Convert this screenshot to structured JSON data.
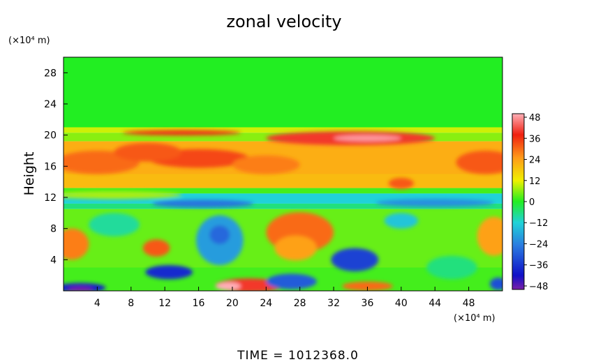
{
  "chart_data": {
    "type": "heatmap",
    "title": "zonal velocity",
    "ylabel": "Height",
    "y_unit": "(×10⁴ m)",
    "x_unit": "(×10⁴ m)",
    "footer": "TIME = 1012368.0",
    "xlim": [
      0,
      52
    ],
    "ylim": [
      0,
      30
    ],
    "x_ticks": [
      "4",
      "8",
      "12",
      "16",
      "20",
      "24",
      "28",
      "32",
      "36",
      "40",
      "44",
      "48"
    ],
    "y_ticks": [
      "4",
      "8",
      "12",
      "16",
      "20",
      "24",
      "28"
    ],
    "colorbar": {
      "range": [
        -50,
        50
      ],
      "ticks": [
        "48",
        "36",
        "24",
        "12",
        "0",
        "−12",
        "−24",
        "−36",
        "−48"
      ],
      "colors": {
        "neg_extreme": "#7a1fa8",
        "deep_blue": "#1010c8",
        "blue": "#2a7be0",
        "cyan": "#20d2d8",
        "green": "#22ee22",
        "yellow": "#f0f000",
        "orange": "#ff9a1a",
        "red": "#f02010",
        "pink": "#ffb0b8"
      }
    },
    "bands": [
      {
        "y_from": 21,
        "y_to": 30,
        "value": 0
      },
      {
        "y_from": 20.3,
        "y_to": 21,
        "value": 10
      },
      {
        "y_from": 19.2,
        "y_to": 20.3,
        "value": 6
      },
      {
        "y_from": 15,
        "y_to": 19.2,
        "value": 22
      },
      {
        "y_from": 13.2,
        "y_to": 15,
        "value": 20
      },
      {
        "y_from": 12.5,
        "y_to": 13.2,
        "value": 2
      },
      {
        "y_from": 11.2,
        "y_to": 12.5,
        "value": -12
      },
      {
        "y_from": 10.5,
        "y_to": 11.2,
        "value": -6
      },
      {
        "y_from": 3,
        "y_to": 10.5,
        "value": 4
      },
      {
        "y_from": 0,
        "y_to": 3,
        "value": 2
      }
    ],
    "features": [
      {
        "x": 16,
        "y": 17,
        "rx": 6,
        "ry": 1.2,
        "value": 34
      },
      {
        "x": 4,
        "y": 16.5,
        "rx": 5,
        "ry": 1.5,
        "value": 30
      },
      {
        "x": 10,
        "y": 17.8,
        "rx": 4,
        "ry": 1.2,
        "value": 32
      },
      {
        "x": 24,
        "y": 16.2,
        "rx": 4,
        "ry": 1.2,
        "value": 28
      },
      {
        "x": 50,
        "y": 16.5,
        "rx": 3.5,
        "ry": 1.5,
        "value": 32
      },
      {
        "x": 14,
        "y": 20.3,
        "rx": 7,
        "ry": 0.35,
        "value": 36
      },
      {
        "x": 34,
        "y": 19.6,
        "rx": 10,
        "ry": 0.9,
        "value": 40
      },
      {
        "x": 36,
        "y": 19.6,
        "rx": 4,
        "ry": 0.4,
        "value": 48
      },
      {
        "x": 40,
        "y": 13.8,
        "rx": 1.5,
        "ry": 0.7,
        "value": 32
      },
      {
        "x": 6,
        "y": 12.3,
        "rx": 8,
        "ry": 0.5,
        "value": 8
      },
      {
        "x": 28,
        "y": 7.5,
        "rx": 4,
        "ry": 2.6,
        "value": 30
      },
      {
        "x": 27.5,
        "y": 5.5,
        "rx": 2.5,
        "ry": 1.6,
        "value": 24
      },
      {
        "x": 18.5,
        "y": 6.5,
        "rx": 2.8,
        "ry": 3.2,
        "value": -20
      },
      {
        "x": 18.5,
        "y": 7.2,
        "rx": 1.2,
        "ry": 1.2,
        "value": -28
      },
      {
        "x": 34.5,
        "y": 4,
        "rx": 2.8,
        "ry": 1.5,
        "value": -34
      },
      {
        "x": 12.5,
        "y": 2.4,
        "rx": 2.8,
        "ry": 0.9,
        "value": -38
      },
      {
        "x": 11,
        "y": 5.5,
        "rx": 1.6,
        "ry": 1.1,
        "value": 32
      },
      {
        "x": 1,
        "y": 6,
        "rx": 2,
        "ry": 2,
        "value": 28
      },
      {
        "x": 51,
        "y": 7,
        "rx": 2,
        "ry": 2.5,
        "value": 24
      },
      {
        "x": 22,
        "y": 0.7,
        "rx": 4,
        "ry": 0.9,
        "value": 40
      },
      {
        "x": 19.5,
        "y": 0.6,
        "rx": 1.5,
        "ry": 0.5,
        "value": 50
      },
      {
        "x": 27,
        "y": 1.2,
        "rx": 3,
        "ry": 1,
        "value": -30
      },
      {
        "x": 36,
        "y": 0.6,
        "rx": 3,
        "ry": 0.6,
        "value": 30
      },
      {
        "x": 2,
        "y": 0.4,
        "rx": 3,
        "ry": 0.6,
        "value": -40
      },
      {
        "x": 2,
        "y": 0.2,
        "rx": 1.5,
        "ry": 0.3,
        "value": -50
      },
      {
        "x": 51.5,
        "y": 0.9,
        "rx": 1,
        "ry": 0.8,
        "value": -32
      },
      {
        "x": 16.5,
        "y": 11.2,
        "rx": 6,
        "ry": 0.5,
        "value": -26
      },
      {
        "x": 44,
        "y": 11.3,
        "rx": 7,
        "ry": 0.5,
        "value": -22
      },
      {
        "x": 6,
        "y": 8.5,
        "rx": 3,
        "ry": 1.5,
        "value": -8
      },
      {
        "x": 40,
        "y": 9,
        "rx": 2,
        "ry": 1,
        "value": -14
      },
      {
        "x": 46,
        "y": 3,
        "rx": 3,
        "ry": 1.5,
        "value": -6
      }
    ]
  }
}
